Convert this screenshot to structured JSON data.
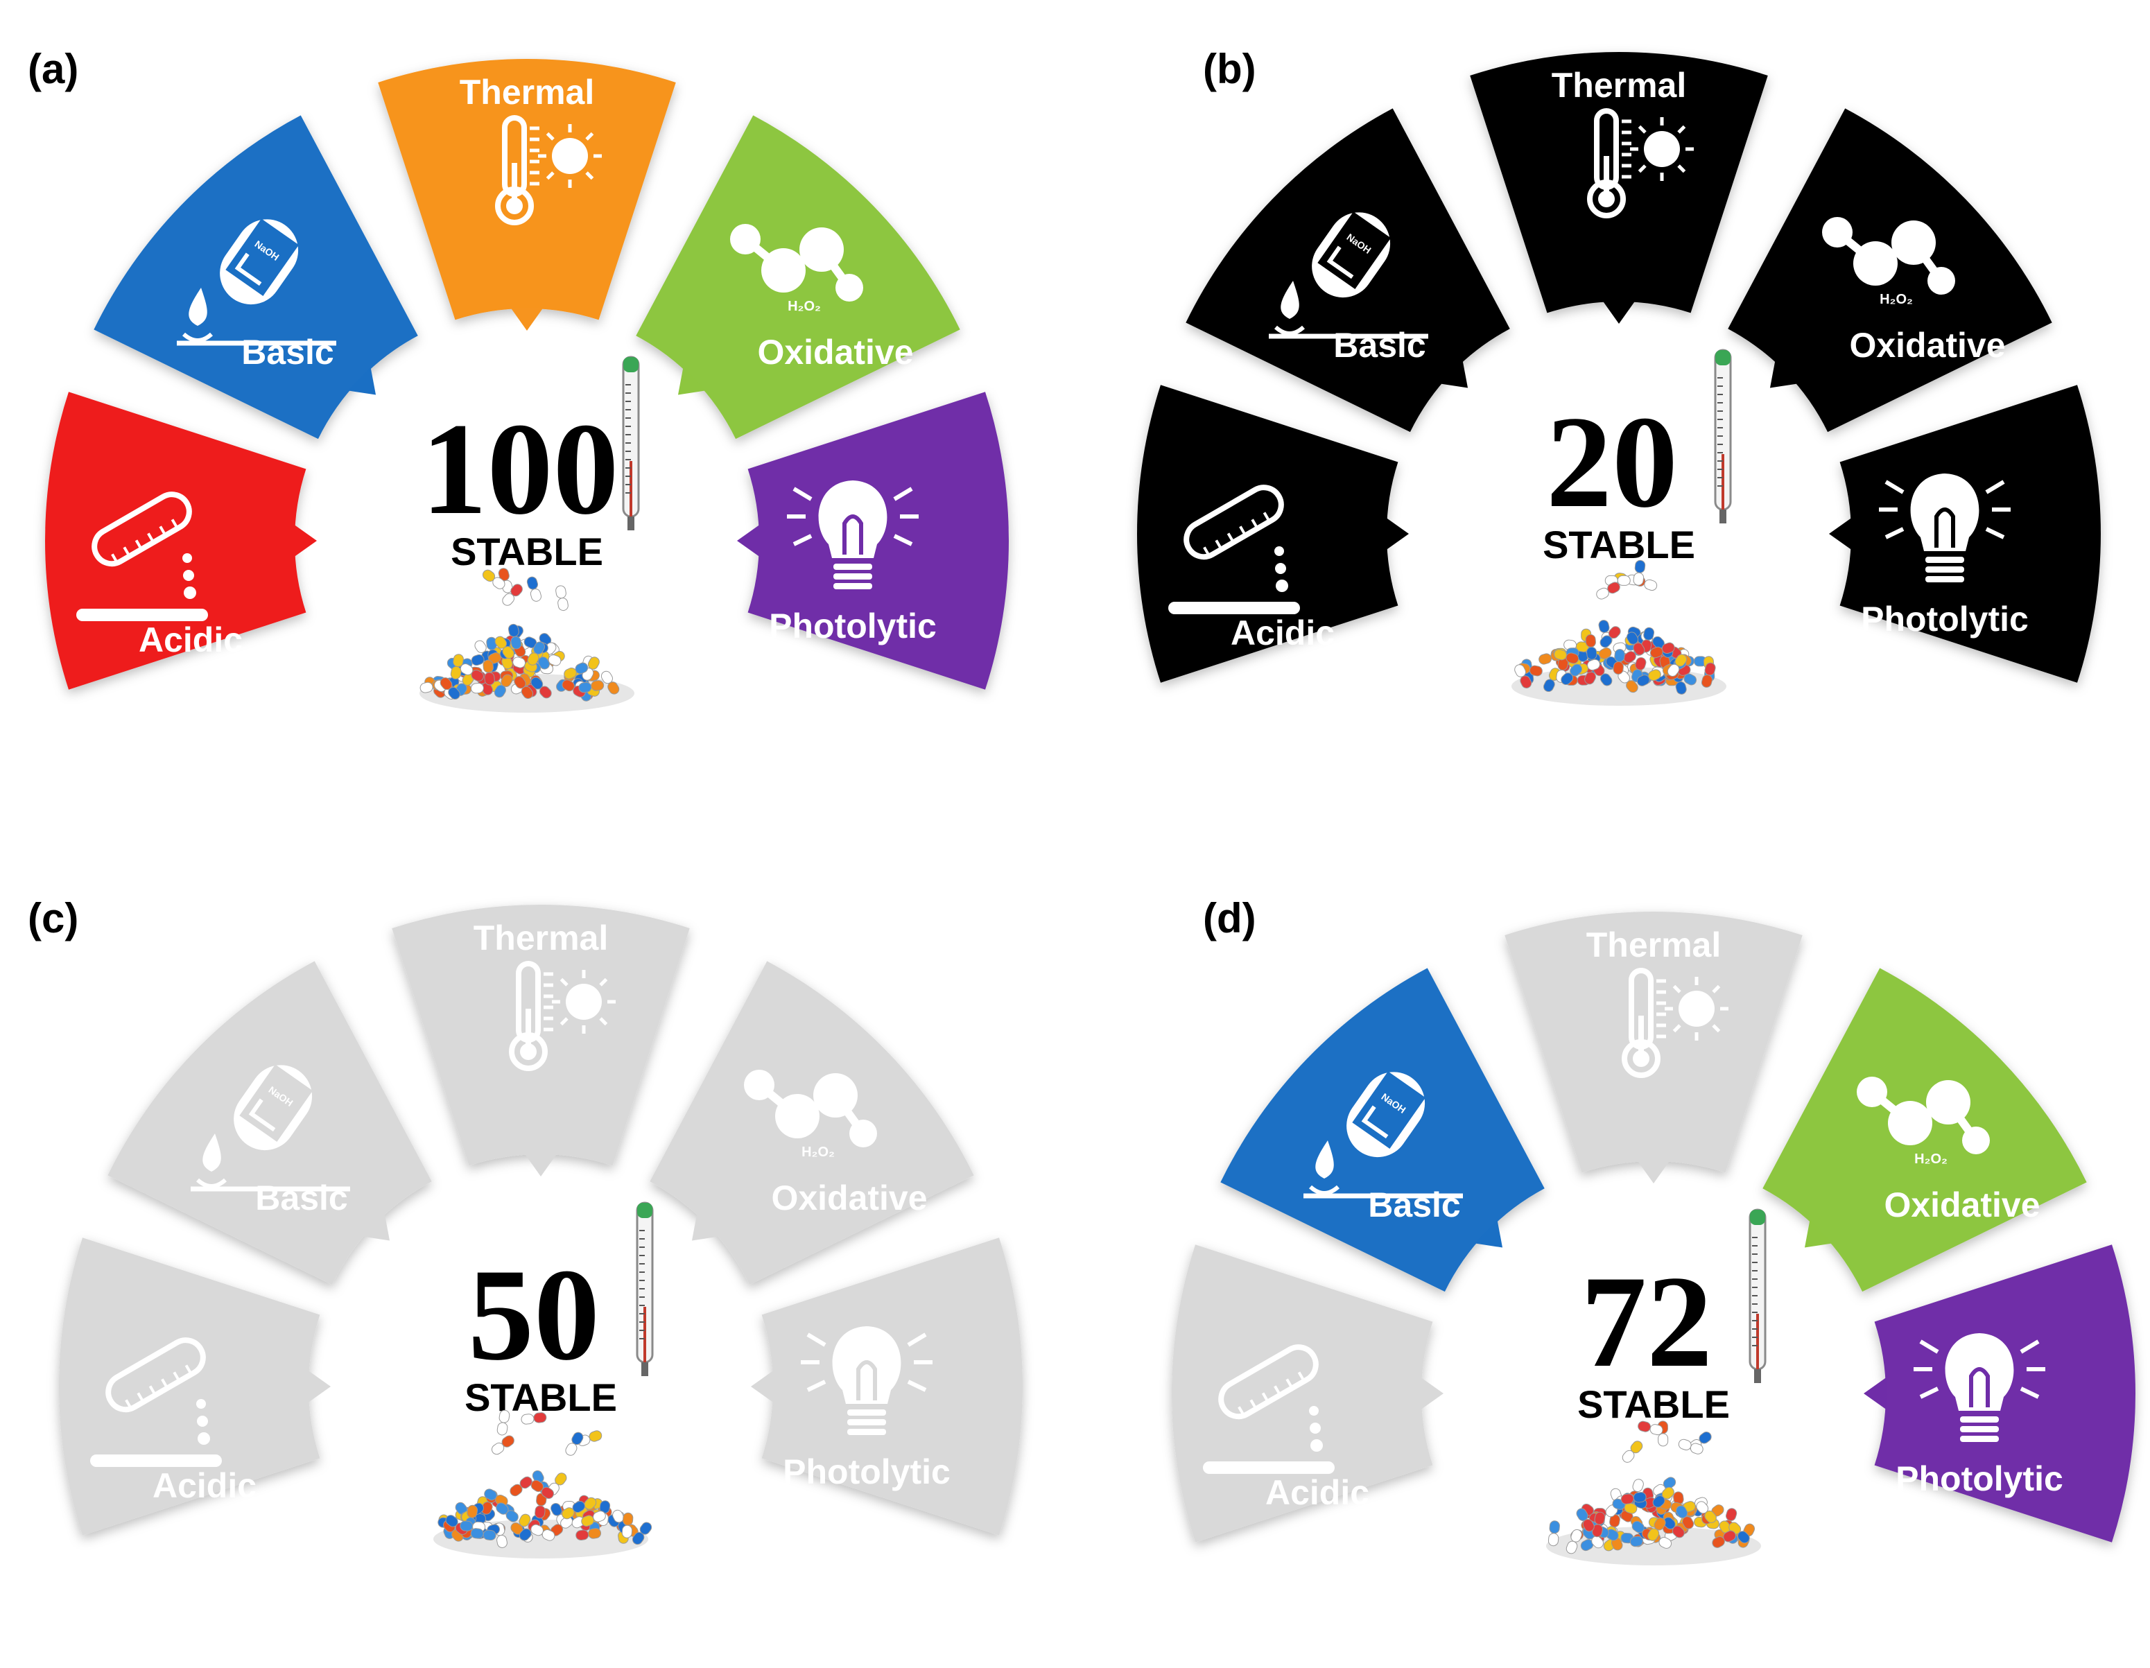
{
  "panels": [
    {
      "label": "(a)",
      "score": "100",
      "stable_label": "STABLE",
      "segments": {
        "acidic": {
          "label": "Acidic",
          "color": "#ee1c1c",
          "text_color": "#ffffff"
        },
        "basic": {
          "label": "Basic",
          "color": "#1a6fc4",
          "text_color": "#ffffff"
        },
        "thermal": {
          "label": "Thermal",
          "color": "#f7941e",
          "text_color": "#ffffff"
        },
        "oxidative": {
          "label": "Oxidative",
          "color": "#8dc63f",
          "text_color": "#ffffff"
        },
        "photolytic": {
          "label": "Photolytic",
          "color": "#6f2da8",
          "text_color": "#ffffff"
        }
      }
    },
    {
      "label": "(b)",
      "score": "20",
      "stable_label": "STABLE",
      "segments": {
        "acidic": {
          "label": "Acidic",
          "color": "#000000",
          "text_color": "#ffffff"
        },
        "basic": {
          "label": "Basic",
          "color": "#000000",
          "text_color": "#ffffff"
        },
        "thermal": {
          "label": "Thermal",
          "color": "#000000",
          "text_color": "#ffffff"
        },
        "oxidative": {
          "label": "Oxidative",
          "color": "#000000",
          "text_color": "#ffffff"
        },
        "photolytic": {
          "label": "Photolytic",
          "color": "#000000",
          "text_color": "#ffffff"
        }
      }
    },
    {
      "label": "(c)",
      "score": "50",
      "stable_label": "STABLE",
      "segments": {
        "acidic": {
          "label": "Acidic",
          "color": "#d9d9d9",
          "text_color": "#ffffff"
        },
        "basic": {
          "label": "Basic",
          "color": "#d9d9d9",
          "text_color": "#ffffff"
        },
        "thermal": {
          "label": "Thermal",
          "color": "#d9d9d9",
          "text_color": "#ffffff"
        },
        "oxidative": {
          "label": "Oxidative",
          "color": "#d9d9d9",
          "text_color": "#ffffff"
        },
        "photolytic": {
          "label": "Photolytic",
          "color": "#d9d9d9",
          "text_color": "#ffffff"
        }
      }
    },
    {
      "label": "(d)",
      "score": "72",
      "stable_label": "STABLE",
      "segments": {
        "acidic": {
          "label": "Acidic",
          "color": "#d9d9d9",
          "text_color": "#ffffff"
        },
        "basic": {
          "label": "Basic",
          "color": "#1a6fc4",
          "text_color": "#ffffff"
        },
        "thermal": {
          "label": "Thermal",
          "color": "#d9d9d9",
          "text_color": "#ffffff"
        },
        "oxidative": {
          "label": "Oxidative",
          "color": "#8dc63f",
          "text_color": "#ffffff"
        },
        "photolytic": {
          "label": "Photolytic",
          "color": "#6f2da8",
          "text_color": "#ffffff"
        }
      }
    }
  ],
  "icons": {
    "acidic": "test-tube-pouring-icon",
    "basic": "naoh-test-tube-icon",
    "thermal": "thermometer-sun-icon",
    "oxidative": "h2o2-molecule-icon",
    "photolytic": "light-bulb-icon",
    "center_thermometer": "thermometer-icon",
    "center_pills": "pills-pile-icon"
  },
  "icon_text": {
    "naoh": "NaOH",
    "h2o2": "H₂O₂"
  }
}
